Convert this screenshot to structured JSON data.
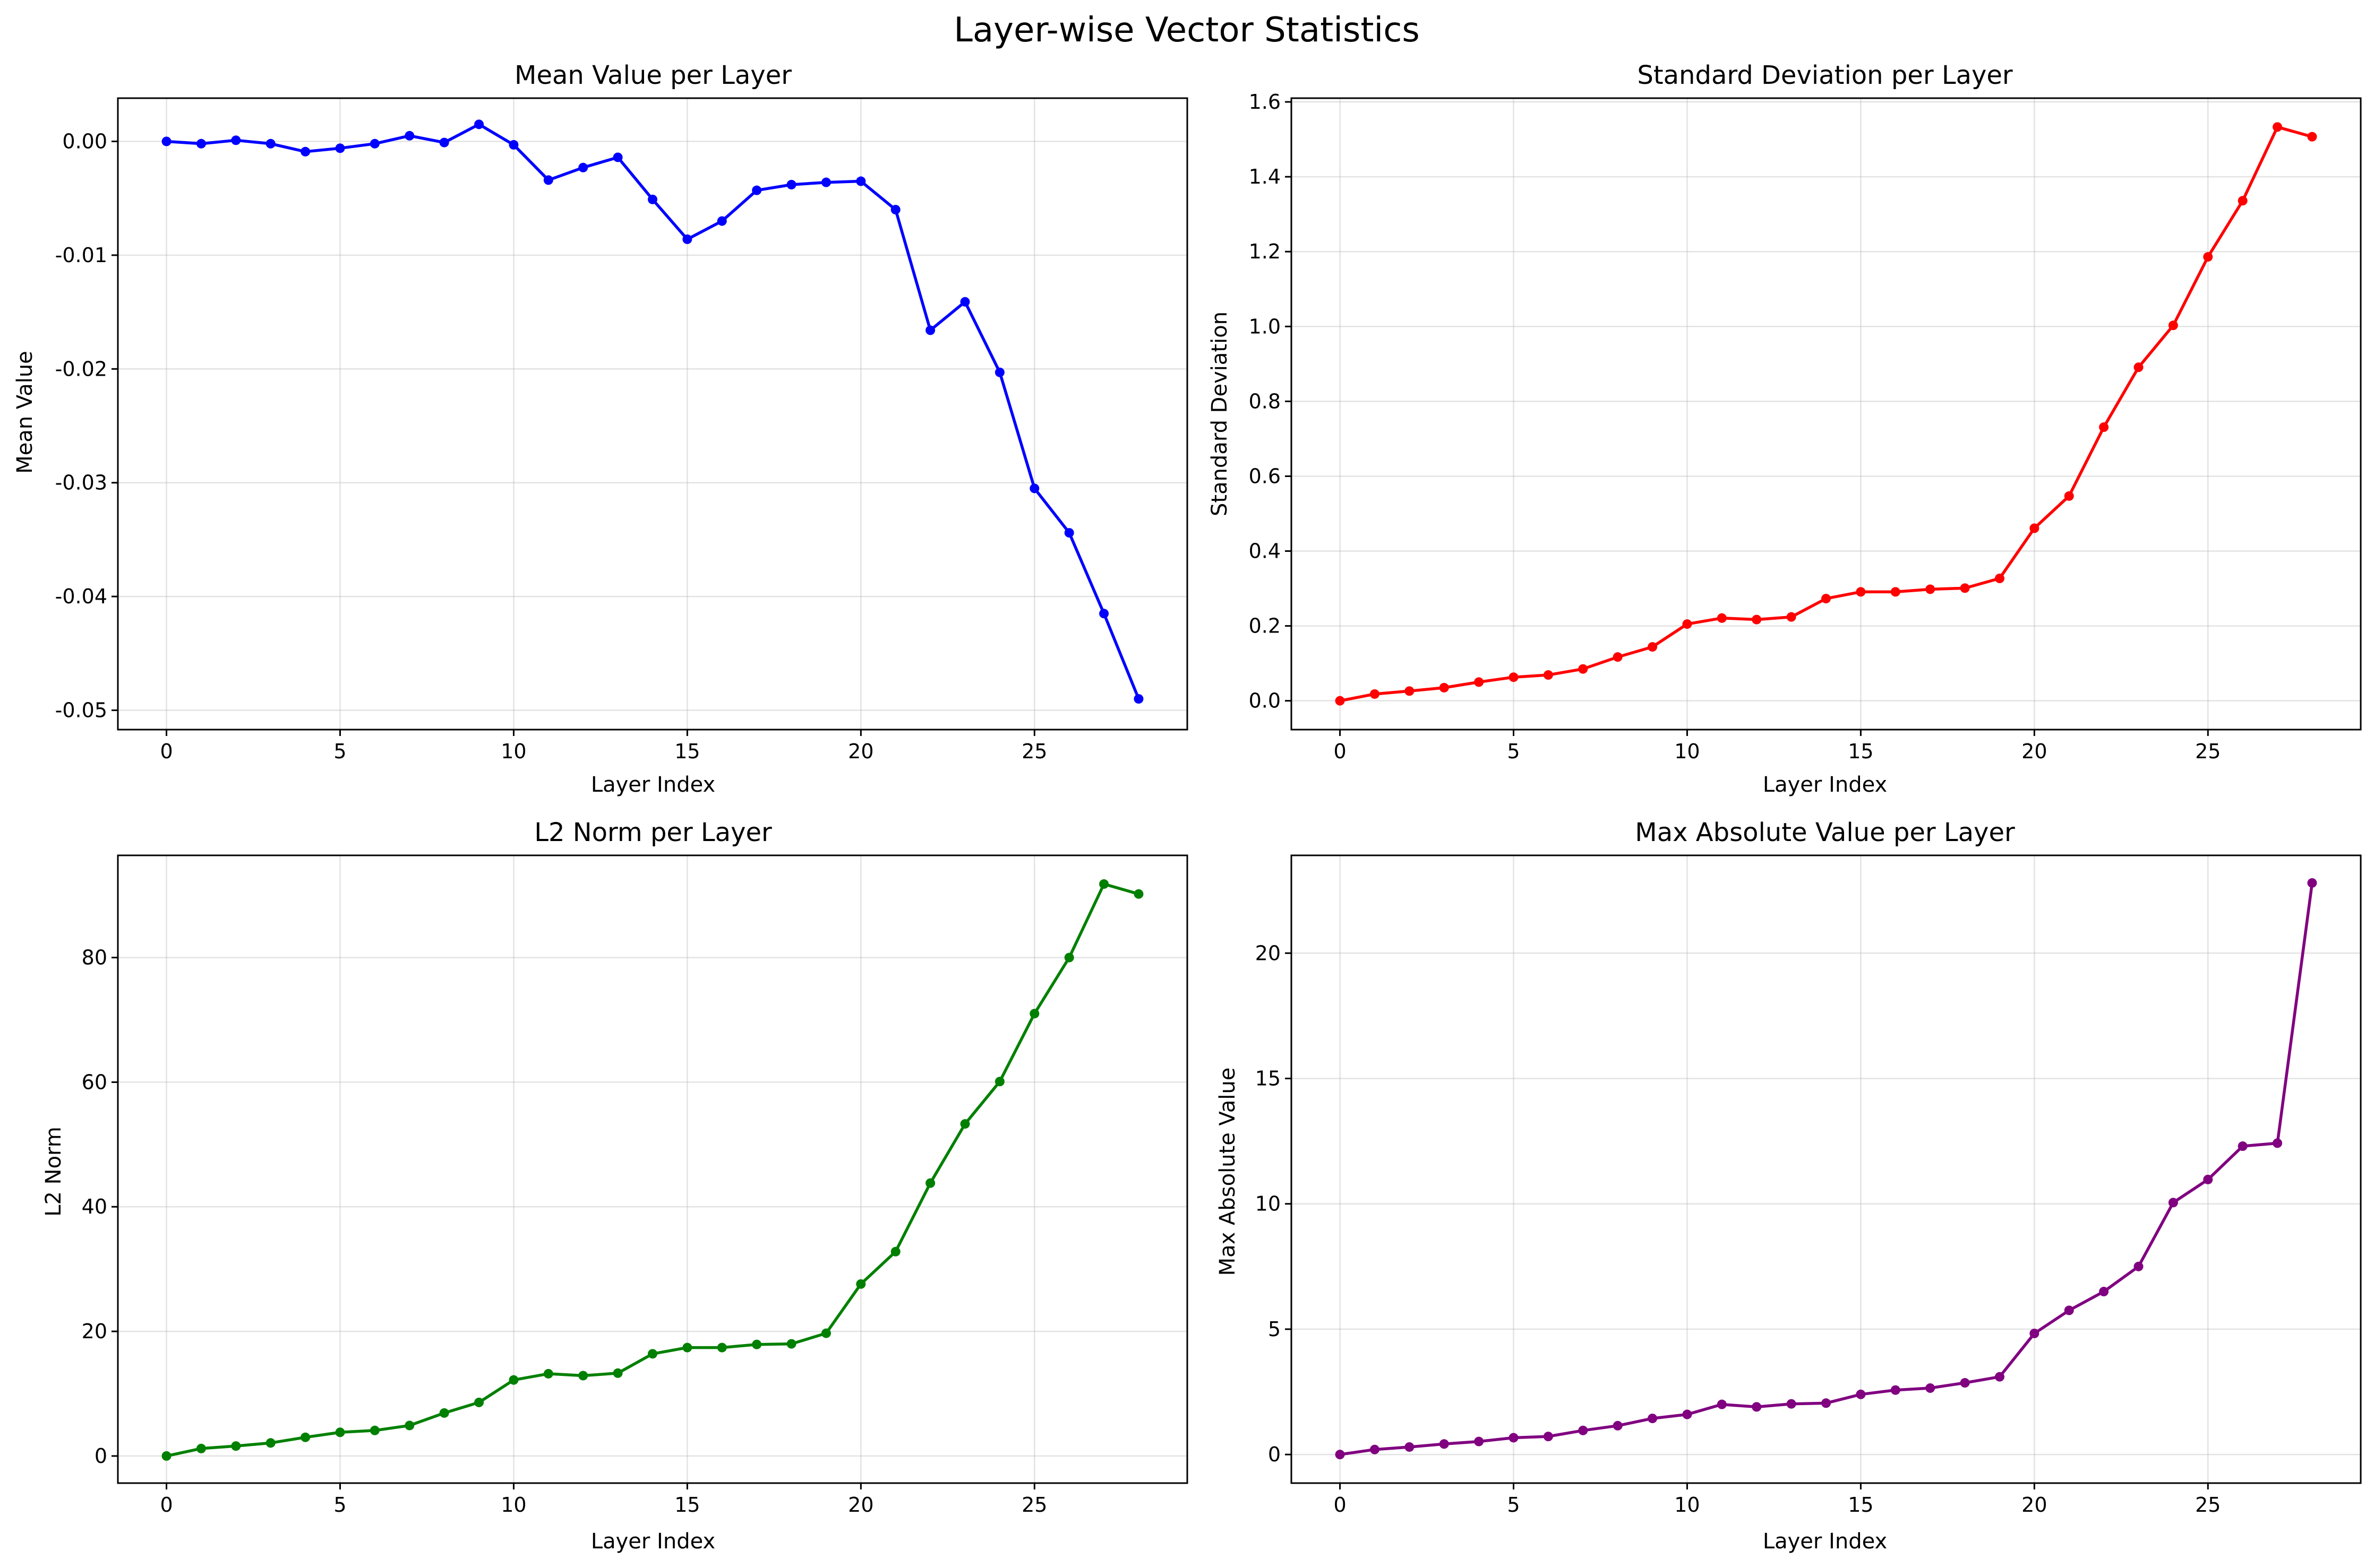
{
  "figure": {
    "title": "Layer-wise Vector Statistics"
  },
  "chart_data": [
    {
      "type": "line",
      "title": "Mean Value per Layer",
      "xlabel": "Layer Index",
      "ylabel": "Mean Value",
      "color": "#0000ff",
      "xlim": [
        -1.4,
        29.4
      ],
      "ylim": [
        -0.0517,
        0.0038
      ],
      "xticks": [
        0,
        5,
        10,
        15,
        20,
        25
      ],
      "yticks": [
        0.0,
        -0.01,
        -0.02,
        -0.03,
        -0.04,
        -0.05
      ],
      "ytick_labels": [
        "0.00",
        "-0.01",
        "-0.02",
        "-0.03",
        "-0.04",
        "-0.05"
      ],
      "grid": true,
      "x": [
        0,
        1,
        2,
        3,
        4,
        5,
        6,
        7,
        8,
        9,
        10,
        11,
        12,
        13,
        14,
        15,
        16,
        17,
        18,
        19,
        20,
        21,
        22,
        23,
        24,
        25,
        26,
        27,
        28
      ],
      "values": [
        0.0,
        -0.0002,
        0.0001,
        -0.0002,
        -0.0009,
        -0.0006,
        -0.0002,
        0.0005,
        -0.0001,
        0.0015,
        -0.0003,
        -0.0034,
        -0.0023,
        -0.0014,
        -0.0051,
        -0.0086,
        -0.007,
        -0.0043,
        -0.0038,
        -0.0036,
        -0.0035,
        -0.006,
        -0.0166,
        -0.0141,
        -0.0203,
        -0.0305,
        -0.0344,
        -0.0415,
        -0.049
      ]
    },
    {
      "type": "line",
      "title": "Standard Deviation per Layer",
      "xlabel": "Layer Index",
      "ylabel": "Standard Deviation",
      "color": "#ff0000",
      "xlim": [
        -1.4,
        29.4
      ],
      "ylim": [
        -0.077,
        1.61
      ],
      "xticks": [
        0,
        5,
        10,
        15,
        20,
        25
      ],
      "yticks": [
        0.0,
        0.2,
        0.4,
        0.6,
        0.8,
        1.0,
        1.2,
        1.4,
        1.6
      ],
      "ytick_labels": [
        "0.0",
        "0.2",
        "0.4",
        "0.6",
        "0.8",
        "1.0",
        "1.2",
        "1.4",
        "1.6"
      ],
      "grid": true,
      "x": [
        0,
        1,
        2,
        3,
        4,
        5,
        6,
        7,
        8,
        9,
        10,
        11,
        12,
        13,
        14,
        15,
        16,
        17,
        18,
        19,
        20,
        21,
        22,
        23,
        24,
        25,
        26,
        27,
        28
      ],
      "values": [
        0.0,
        0.018,
        0.026,
        0.035,
        0.05,
        0.063,
        0.069,
        0.085,
        0.117,
        0.144,
        0.205,
        0.221,
        0.217,
        0.224,
        0.273,
        0.291,
        0.291,
        0.298,
        0.301,
        0.327,
        0.461,
        0.547,
        0.731,
        0.891,
        1.003,
        1.186,
        1.336,
        1.533,
        1.507
      ]
    },
    {
      "type": "line",
      "title": "L2 Norm per Layer",
      "xlabel": "Layer Index",
      "ylabel": "L2 Norm",
      "color": "#008000",
      "xlim": [
        -1.4,
        29.4
      ],
      "ylim": [
        -4.35,
        96.4
      ],
      "xticks": [
        0,
        5,
        10,
        15,
        20,
        25
      ],
      "yticks": [
        0,
        20,
        40,
        60,
        80
      ],
      "ytick_labels": [
        "0",
        "20",
        "40",
        "60",
        "80"
      ],
      "grid": true,
      "x": [
        0,
        1,
        2,
        3,
        4,
        5,
        6,
        7,
        8,
        9,
        10,
        11,
        12,
        13,
        14,
        15,
        16,
        17,
        18,
        19,
        20,
        21,
        22,
        23,
        24,
        25,
        26,
        27,
        28
      ],
      "values": [
        0.0,
        1.2,
        1.6,
        2.1,
        3.0,
        3.8,
        4.1,
        4.9,
        6.9,
        8.6,
        12.2,
        13.2,
        12.9,
        13.3,
        16.4,
        17.4,
        17.4,
        17.9,
        18.0,
        19.7,
        27.6,
        32.8,
        43.8,
        53.3,
        60.1,
        71.0,
        80.0,
        91.8,
        90.2
      ]
    },
    {
      "type": "line",
      "title": "Max Absolute Value per Layer",
      "xlabel": "Layer Index",
      "ylabel": "Max Absolute Value",
      "color": "#800080",
      "xlim": [
        -1.4,
        29.4
      ],
      "ylim": [
        -1.14,
        23.9
      ],
      "xticks": [
        0,
        5,
        10,
        15,
        20,
        25
      ],
      "yticks": [
        0,
        5,
        10,
        15,
        20
      ],
      "ytick_labels": [
        "0",
        "5",
        "10",
        "15",
        "20"
      ],
      "grid": true,
      "x": [
        0,
        1,
        2,
        3,
        4,
        5,
        6,
        7,
        8,
        9,
        10,
        11,
        12,
        13,
        14,
        15,
        16,
        17,
        18,
        19,
        20,
        21,
        22,
        23,
        24,
        25,
        26,
        27,
        28
      ],
      "values": [
        0.0,
        0.2,
        0.3,
        0.42,
        0.52,
        0.67,
        0.72,
        0.96,
        1.15,
        1.44,
        1.6,
        2.0,
        1.9,
        2.02,
        2.05,
        2.4,
        2.57,
        2.65,
        2.86,
        3.1,
        4.83,
        5.75,
        6.5,
        7.5,
        10.05,
        10.97,
        12.3,
        12.42,
        22.8
      ]
    }
  ]
}
